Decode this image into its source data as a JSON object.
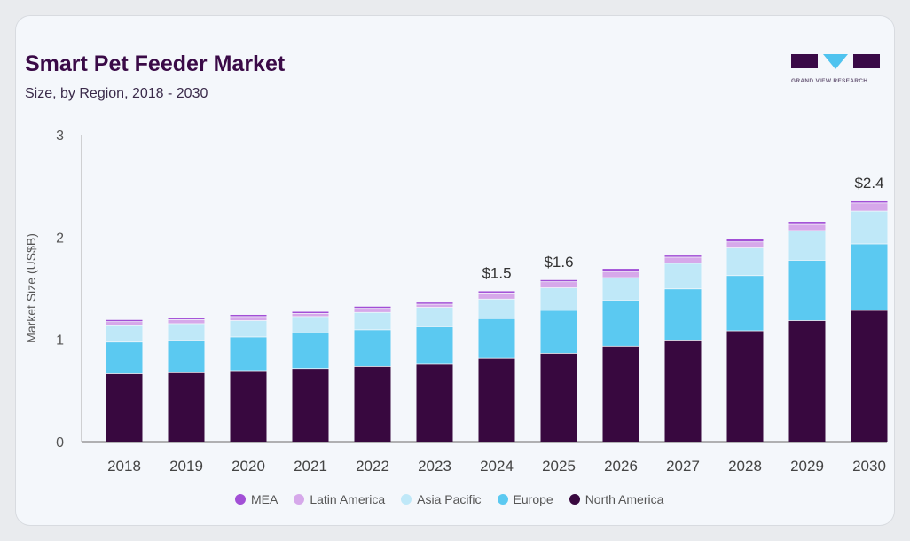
{
  "header": {
    "title": "Smart Pet Feeder Market",
    "subtitle": "Size, by Region, 2018 - 2030",
    "logo_text": "GRAND VIEW RESEARCH"
  },
  "chart_data": {
    "type": "bar",
    "stacked": true,
    "title": "Smart Pet Feeder Market",
    "subtitle": "Size, by Region, 2018 - 2030",
    "xlabel": "",
    "ylabel": "Market Size (US$B)",
    "ylim": [
      0,
      3
    ],
    "yticks": [
      "0",
      "1",
      "2",
      "3"
    ],
    "categories": [
      "2018",
      "2019",
      "2020",
      "2021",
      "2022",
      "2023",
      "2024",
      "2025",
      "2026",
      "2027",
      "2028",
      "2029",
      "2030"
    ],
    "series": [
      {
        "name": "North America",
        "color": "#38083f",
        "values": [
          0.66,
          0.67,
          0.69,
          0.71,
          0.73,
          0.76,
          0.81,
          0.86,
          0.93,
          0.99,
          1.08,
          1.18,
          1.28
        ]
      },
      {
        "name": "Europe",
        "color": "#5bc9f1",
        "values": [
          0.31,
          0.32,
          0.33,
          0.35,
          0.36,
          0.36,
          0.39,
          0.42,
          0.45,
          0.5,
          0.54,
          0.59,
          0.65
        ]
      },
      {
        "name": "Asia Pacific",
        "color": "#bfe8f8",
        "values": [
          0.16,
          0.16,
          0.16,
          0.16,
          0.17,
          0.19,
          0.19,
          0.22,
          0.22,
          0.25,
          0.27,
          0.29,
          0.32
        ]
      },
      {
        "name": "Latin America",
        "color": "#d6a8ea",
        "values": [
          0.04,
          0.04,
          0.04,
          0.03,
          0.04,
          0.03,
          0.06,
          0.06,
          0.06,
          0.06,
          0.06,
          0.06,
          0.08
        ]
      },
      {
        "name": "MEA",
        "color": "#a24fd6",
        "values": [
          0.02,
          0.02,
          0.02,
          0.02,
          0.02,
          0.02,
          0.02,
          0.02,
          0.03,
          0.02,
          0.03,
          0.03,
          0.02
        ]
      }
    ],
    "annotations": [
      {
        "category": "2024",
        "text": "$1.5"
      },
      {
        "category": "2025",
        "text": "$1.6"
      },
      {
        "category": "2030",
        "text": "$2.4"
      }
    ],
    "legend_order": [
      "MEA",
      "Latin America",
      "Asia Pacific",
      "Europe",
      "North America"
    ],
    "legend_position": "bottom",
    "grid": false
  }
}
